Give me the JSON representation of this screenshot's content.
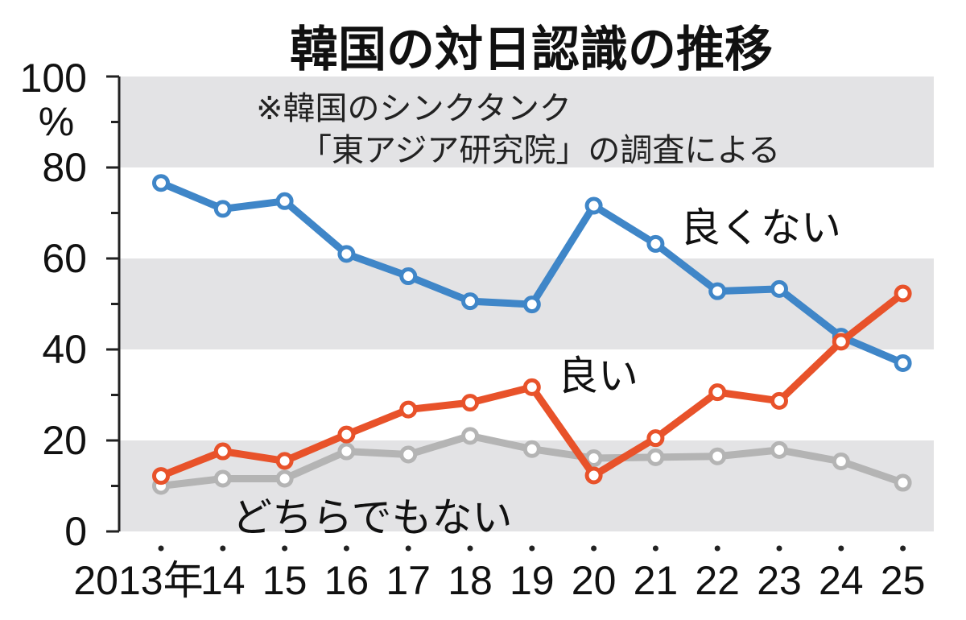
{
  "chart_data": {
    "type": "line",
    "title": "韓国の対日認識の推移",
    "note_line1": "※韓国のシンクタンク",
    "note_line2": "「東アジア研究院」の調査による",
    "y_unit_top": "100",
    "y_unit_label": "%",
    "ylim": [
      0,
      100
    ],
    "yticks": [
      0,
      20,
      40,
      60,
      80
    ],
    "grid": "alternating horizontal gray bands",
    "x": [
      "2013年",
      "14",
      "15",
      "16",
      "17",
      "18",
      "19",
      "20",
      "21",
      "22",
      "23",
      "24",
      "25"
    ],
    "series": [
      {
        "name": "良くない",
        "color": "#3f86c8",
        "values": [
          76.6,
          70.9,
          72.6,
          61.0,
          56.1,
          50.6,
          49.9,
          71.6,
          63.2,
          52.8,
          53.3,
          42.8,
          37.0
        ]
      },
      {
        "name": "良い",
        "color": "#e8522a",
        "values": [
          12.2,
          17.6,
          15.5,
          21.3,
          26.8,
          28.3,
          31.7,
          12.3,
          20.5,
          30.6,
          28.7,
          41.7,
          52.3
        ]
      },
      {
        "name": "どちらでもない",
        "color": "#b4b4b4",
        "values": [
          10.0,
          11.6,
          11.6,
          17.6,
          16.9,
          21.0,
          18.1,
          16.1,
          16.3,
          16.5,
          17.9,
          15.4,
          10.7
        ]
      }
    ]
  }
}
